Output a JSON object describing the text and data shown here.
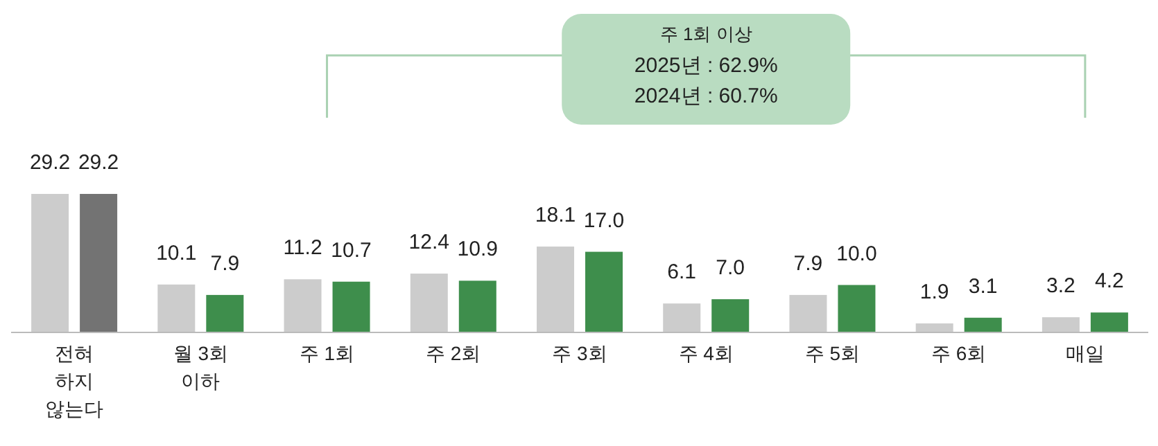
{
  "chart_data": {
    "type": "bar",
    "categories": [
      "전혀\n하지\n않는다",
      "월 3회\n이하",
      "주 1회",
      "주 2회",
      "주 3회",
      "주 4회",
      "주 5회",
      "주 6회",
      "매일"
    ],
    "series": [
      {
        "colors": [
          "#cccccc",
          "#cccccc",
          "#cccccc",
          "#cccccc",
          "#cccccc",
          "#cccccc",
          "#cccccc",
          "#cccccc",
          "#cccccc"
        ],
        "values": [
          29.2,
          10.1,
          11.2,
          12.4,
          18.1,
          6.1,
          7.9,
          1.9,
          3.2
        ],
        "value_labels": [
          "29.2",
          "10.1",
          "11.2",
          "12.4",
          "18.1",
          "6.1",
          "7.9",
          "1.9",
          "3.2"
        ]
      },
      {
        "colors": [
          "#737373",
          "#3e8e4c",
          "#3e8e4c",
          "#3e8e4c",
          "#3e8e4c",
          "#3e8e4c",
          "#3e8e4c",
          "#3e8e4c",
          "#3e8e4c"
        ],
        "values": [
          29.2,
          7.9,
          10.7,
          10.9,
          17.0,
          7.0,
          10.0,
          3.1,
          4.2
        ],
        "value_labels": [
          "29.2",
          "7.9",
          "10.7",
          "10.9",
          "17.0",
          "7.0",
          "10.0",
          "3.1",
          "4.2"
        ]
      }
    ],
    "annotations": [
      "주 1회 이상",
      "2025년 : 62.9%",
      "2024년 : 60.7%"
    ]
  }
}
